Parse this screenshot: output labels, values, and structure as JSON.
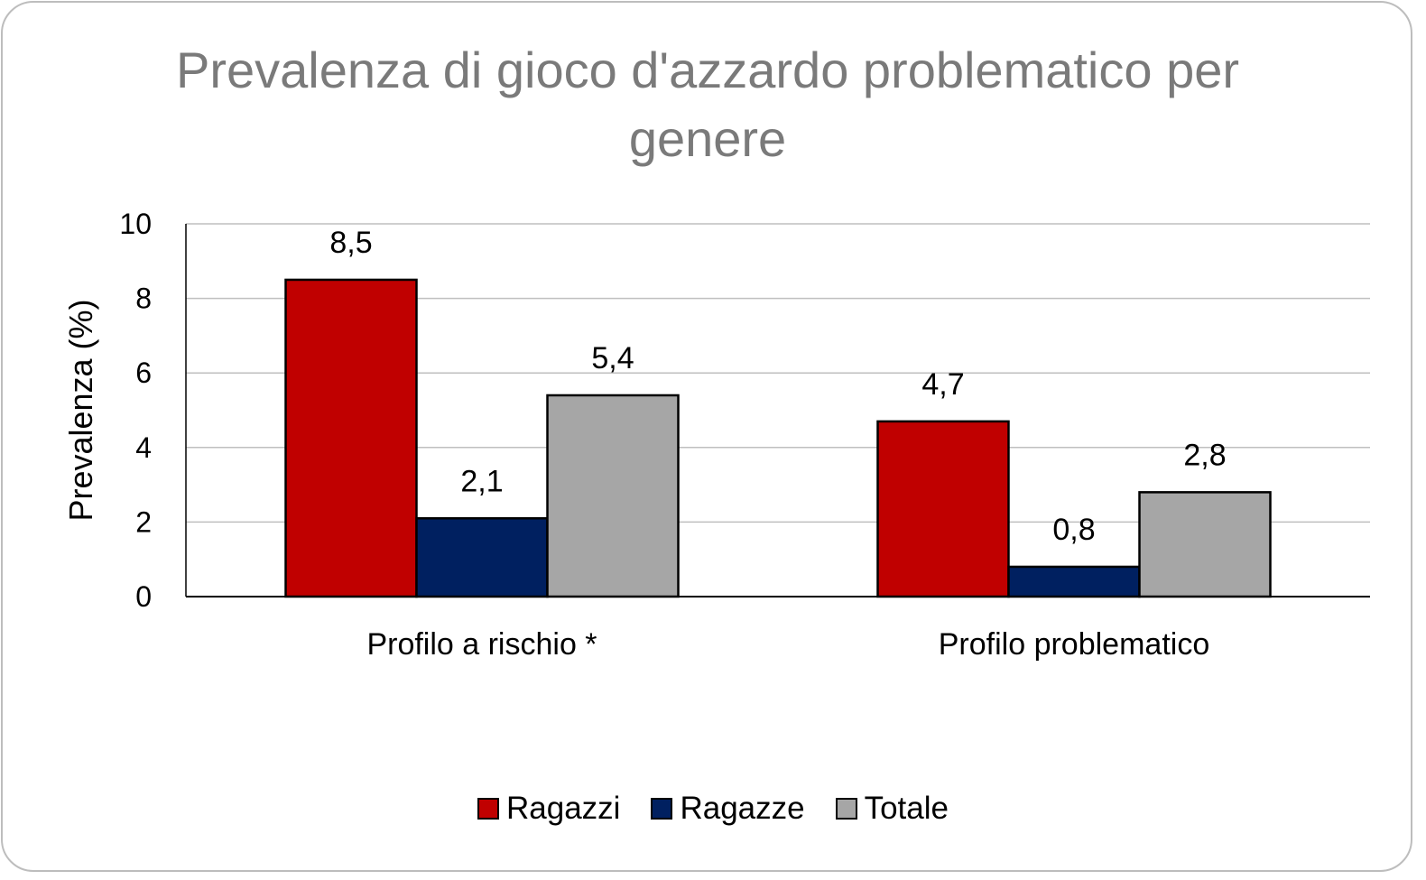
{
  "chart_data": {
    "type": "bar",
    "title": "Prevalenza di gioco d'azzardo problematico per genere",
    "ylabel": "Prevalenza (%)",
    "xlabel": "",
    "ylim": [
      0,
      10
    ],
    "yticks": [
      0,
      2,
      4,
      6,
      8,
      10
    ],
    "grid": true,
    "legend_position": "bottom",
    "categories": [
      "Profilo a rischio *",
      "Profilo problematico"
    ],
    "series": [
      {
        "name": "Ragazzi",
        "color": "#c00000",
        "values": [
          8.5,
          4.7
        ],
        "labels": [
          "8,5",
          "4,7"
        ]
      },
      {
        "name": "Ragazze",
        "color": "#002060",
        "values": [
          2.1,
          0.8
        ],
        "labels": [
          "2,1",
          "0,8"
        ]
      },
      {
        "name": "Totale",
        "color": "#a6a6a6",
        "values": [
          5.4,
          2.8
        ],
        "labels": [
          "5,4",
          "2,8"
        ]
      }
    ]
  }
}
